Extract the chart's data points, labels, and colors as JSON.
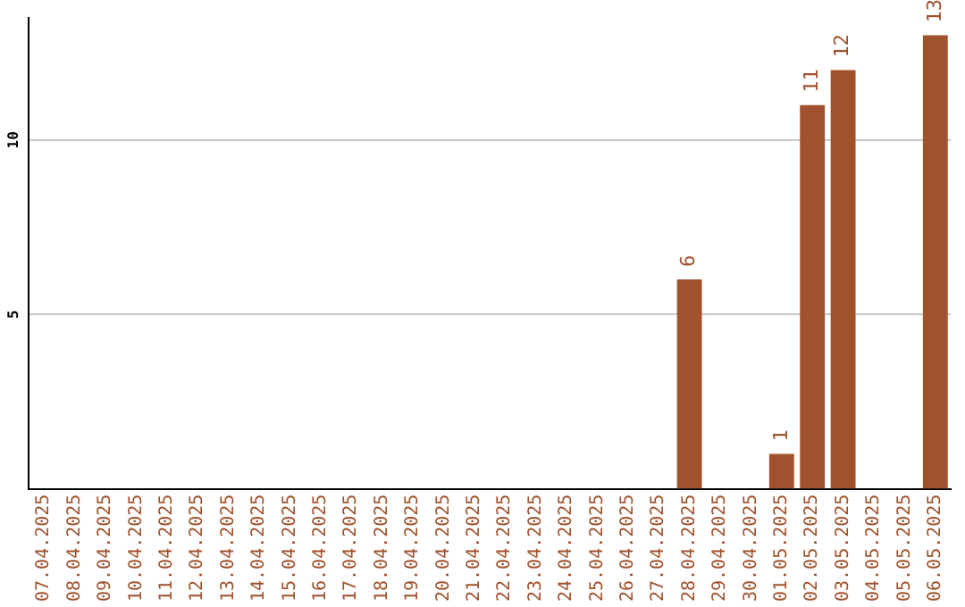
{
  "chart_data": {
    "type": "bar",
    "categories": [
      "07.04.2025",
      "08.04.2025",
      "09.04.2025",
      "10.04.2025",
      "11.04.2025",
      "12.04.2025",
      "13.04.2025",
      "14.04.2025",
      "15.04.2025",
      "16.04.2025",
      "17.04.2025",
      "18.04.2025",
      "19.04.2025",
      "20.04.2025",
      "21.04.2025",
      "22.04.2025",
      "23.04.2025",
      "24.04.2025",
      "25.04.2025",
      "26.04.2025",
      "27.04.2025",
      "28.04.2025",
      "29.04.2025",
      "30.04.2025",
      "01.05.2025",
      "02.05.2025",
      "03.05.2025",
      "04.05.2025",
      "05.05.2025",
      "06.05.2025"
    ],
    "values": [
      0,
      0,
      0,
      0,
      0,
      0,
      0,
      0,
      0,
      0,
      0,
      0,
      0,
      0,
      0,
      0,
      0,
      0,
      0,
      0,
      0,
      6,
      0,
      0,
      1,
      11,
      12,
      0,
      0,
      13
    ],
    "value_labels": [
      null,
      null,
      null,
      null,
      null,
      null,
      null,
      null,
      null,
      null,
      null,
      null,
      null,
      null,
      null,
      null,
      null,
      null,
      null,
      null,
      null,
      "6",
      null,
      null,
      "1",
      "11",
      "12",
      null,
      null,
      "13"
    ],
    "color": "#a0522d",
    "ylim": [
      0,
      13.5
    ],
    "yticks": [
      5,
      10
    ],
    "grid": "y"
  }
}
